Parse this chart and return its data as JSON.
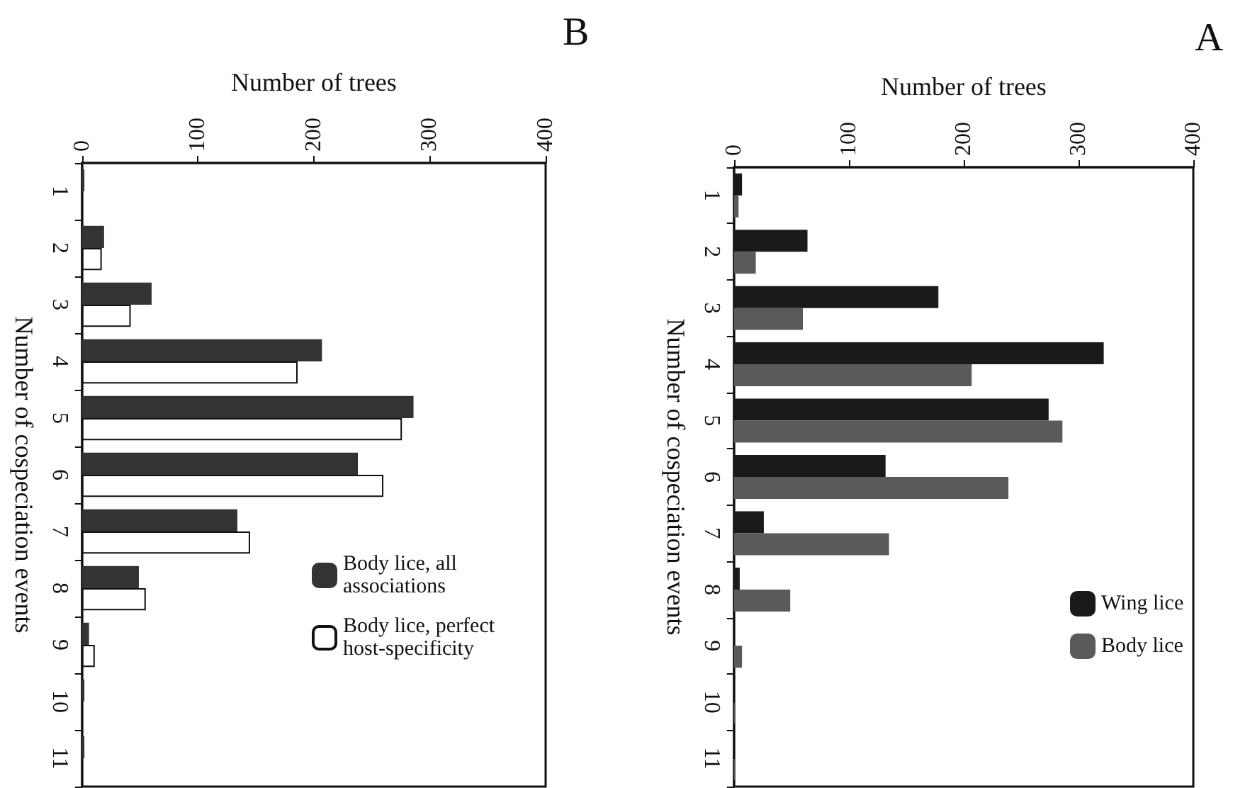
{
  "chart_data": [
    {
      "type": "bar",
      "orientation": "horizontal",
      "title": "A",
      "xlabel": "Number of trees",
      "ylabel": "Number of cospeciation events",
      "categories": [
        "1",
        "2",
        "3",
        "4",
        "5",
        "6",
        "7",
        "8",
        "9",
        "10",
        "11"
      ],
      "series": [
        {
          "name": "Wing lice",
          "color": "#1a1a1a",
          "values": [
            7,
            64,
            178,
            322,
            274,
            132,
            26,
            5,
            null,
            null,
            null
          ]
        },
        {
          "name": "Body lice",
          "color": "#5a5a5a",
          "values": [
            4,
            19,
            60,
            207,
            286,
            239,
            135,
            49,
            7,
            1,
            1
          ]
        }
      ],
      "xlim": [
        0,
        400
      ],
      "xticks": [
        0,
        100,
        200,
        300,
        400
      ],
      "grid": false,
      "legend": "bottom right"
    },
    {
      "type": "bar",
      "orientation": "horizontal",
      "title": "B",
      "xlabel": "Number of trees",
      "ylabel": "Number of cospeciation events",
      "categories": [
        "1",
        "2",
        "3",
        "4",
        "5",
        "6",
        "7",
        "8",
        "9",
        "10",
        "11"
      ],
      "series": [
        {
          "name": "Body lice, all associations",
          "color": "#333333",
          "values": [
            2,
            19,
            60,
            207,
            286,
            238,
            134,
            49,
            6,
            2,
            2
          ]
        },
        {
          "name": "Body lice, perfect host-specificity",
          "color": "#ffffff",
          "values": [
            0,
            17,
            42,
            186,
            276,
            260,
            145,
            55,
            11,
            0,
            0
          ]
        }
      ],
      "xlim": [
        0,
        400
      ],
      "xticks": [
        0,
        100,
        200,
        300,
        400
      ],
      "grid": false,
      "legend": "bottom right"
    }
  ]
}
